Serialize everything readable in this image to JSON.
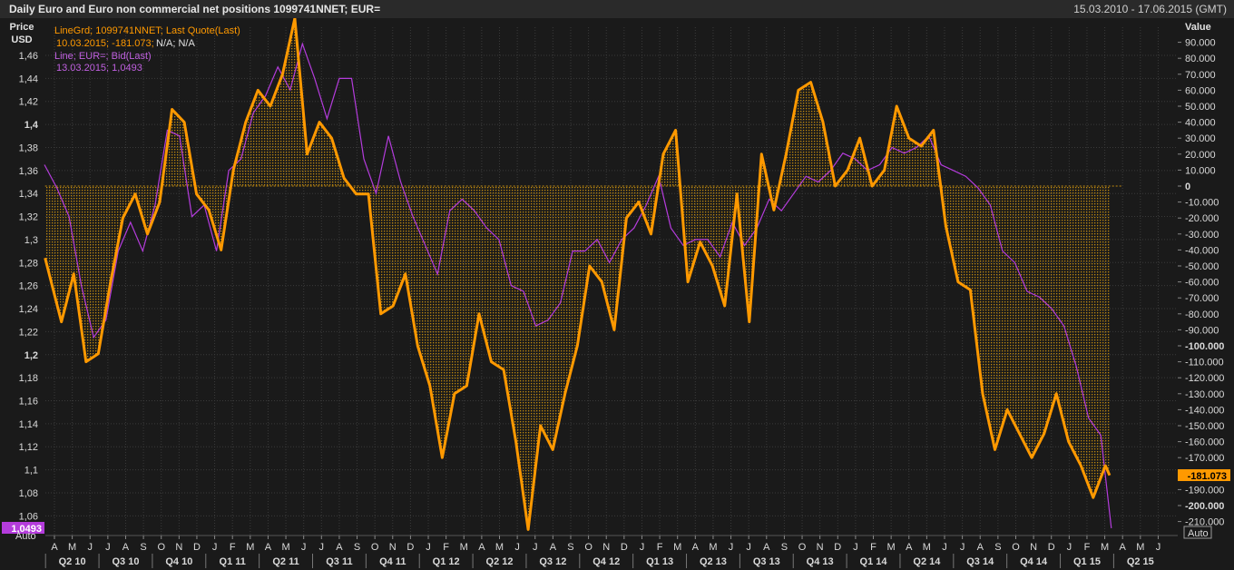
{
  "header": {
    "title": "Daily Euro and Euro non commercial net positions 1099741NNET; EUR=",
    "date_range": "15.03.2010 - 17.06.2015 (GMT)"
  },
  "left_axis": {
    "label_line1": "Price",
    "label_line2": "USD",
    "ticks": [
      "1,46",
      "1,44",
      "1,42",
      "1,4",
      "1,38",
      "1,36",
      "1,34",
      "1,32",
      "1,3",
      "1,28",
      "1,26",
      "1,24",
      "1,22",
      "1,2",
      "1,18",
      "1,16",
      "1,14",
      "1,12",
      "1,1",
      "1,08",
      "1,06"
    ],
    "last_value_tag": "1,0493",
    "auto_button": "Auto"
  },
  "right_axis": {
    "label": "Value",
    "ticks": [
      "90.000",
      "80.000",
      "70.000",
      "60.000",
      "50.000",
      "40.000",
      "30.000",
      "20.000",
      "10.000",
      "0",
      "-10.000",
      "-20.000",
      "-30.000",
      "-40.000",
      "-50.000",
      "-60.000",
      "-70.000",
      "-80.000",
      "-90.000",
      "-100.000",
      "-110.000",
      "-120.000",
      "-130.000",
      "-140.000",
      "-150.000",
      "-160.000",
      "-170.000",
      "-180.000",
      "-190.000",
      "-200.000",
      "-210.000"
    ],
    "last_value_tag": "-181.073",
    "auto_button": "Auto"
  },
  "legend": {
    "series1_name": "LineGrd; 1099741NNET; Last Quote(Last)",
    "series1_detail": "10.03.2015; -181.073;",
    "series1_na": "N/A; N/A",
    "series2_name": "Line; EUR=; Bid(Last)",
    "series2_detail": "13.03.2015; 1,0493"
  },
  "colors": {
    "background": "#1a1a1a",
    "grid": "#3a3a3a",
    "positions": "#ff9900",
    "positions_fill": "#c08a10",
    "eurusd": "#b43cdc",
    "tag_positions": "#ff9900",
    "tag_eurusd": "#b43cdc"
  },
  "x_axis": {
    "months": [
      "A",
      "M",
      "J",
      "J",
      "A",
      "S",
      "O",
      "N",
      "D",
      "J",
      "F",
      "M",
      "A",
      "M",
      "J",
      "J",
      "A",
      "S",
      "O",
      "N",
      "D",
      "J",
      "F",
      "M",
      "A",
      "M",
      "J",
      "J",
      "A",
      "S",
      "O",
      "N",
      "D",
      "J",
      "F",
      "M",
      "A",
      "M",
      "J",
      "J",
      "A",
      "S",
      "O",
      "N",
      "D",
      "J",
      "F",
      "M",
      "A",
      "M",
      "J",
      "J",
      "A",
      "S",
      "O",
      "N",
      "D",
      "J",
      "F",
      "M",
      "A",
      "M",
      "J"
    ],
    "quarters": [
      "Q2 10",
      "Q3 10",
      "Q4 10",
      "Q1 11",
      "Q2 11",
      "Q3 11",
      "Q4 11",
      "Q1 12",
      "Q2 12",
      "Q3 12",
      "Q4 12",
      "Q1 13",
      "Q2 13",
      "Q3 13",
      "Q4 13",
      "Q1 14",
      "Q2 14",
      "Q3 14",
      "Q4 14",
      "Q1 15",
      "Q2 15"
    ]
  },
  "chart_data": {
    "type": "line",
    "title": "Daily Euro and Euro non commercial net positions 1099741NNET; EUR=",
    "x_range": [
      "2010-03-15",
      "2015-06-17"
    ],
    "series": [
      {
        "name": "LineGrd; 1099741NNET; Last Quote(Last)",
        "axis": "right",
        "style": "line-with-fill-to-zero",
        "x": [
          "2010-03-16",
          "2010-04-13",
          "2010-05-04",
          "2010-05-25",
          "2010-06-15",
          "2010-07-06",
          "2010-07-27",
          "2010-08-17",
          "2010-09-07",
          "2010-09-28",
          "2010-10-19",
          "2010-11-09",
          "2010-11-30",
          "2010-12-21",
          "2011-01-11",
          "2011-02-01",
          "2011-02-22",
          "2011-03-15",
          "2011-04-05",
          "2011-04-26",
          "2011-05-17",
          "2011-06-07",
          "2011-06-28",
          "2011-07-19",
          "2011-08-09",
          "2011-08-30",
          "2011-09-20",
          "2011-10-11",
          "2011-11-01",
          "2011-11-22",
          "2011-12-13",
          "2012-01-03",
          "2012-01-24",
          "2012-02-14",
          "2012-03-06",
          "2012-03-27",
          "2012-04-17",
          "2012-05-08",
          "2012-05-29",
          "2012-06-19",
          "2012-07-10",
          "2012-07-31",
          "2012-08-21",
          "2012-09-11",
          "2012-10-02",
          "2012-10-23",
          "2012-11-13",
          "2012-12-04",
          "2012-12-25",
          "2013-01-15",
          "2013-02-05",
          "2013-02-26",
          "2013-03-19",
          "2013-04-09",
          "2013-04-30",
          "2013-05-21",
          "2013-06-11",
          "2013-07-02",
          "2013-07-23",
          "2013-08-13",
          "2013-09-03",
          "2013-09-24",
          "2013-10-15",
          "2013-11-05",
          "2013-11-26",
          "2013-12-17",
          "2014-01-07",
          "2014-01-28",
          "2014-02-18",
          "2014-03-11",
          "2014-04-01",
          "2014-04-22",
          "2014-05-13",
          "2014-06-03",
          "2014-06-24",
          "2014-07-15",
          "2014-08-05",
          "2014-08-26",
          "2014-09-16",
          "2014-10-07",
          "2014-10-28",
          "2014-11-18",
          "2014-12-09",
          "2014-12-30",
          "2015-01-20",
          "2015-02-10",
          "2015-03-03",
          "2015-03-10"
        ],
        "values": [
          -45000,
          -85000,
          -55000,
          -110000,
          -105000,
          -60000,
          -20000,
          -5000,
          -30000,
          -10000,
          48000,
          40000,
          -5000,
          -15000,
          -40000,
          10000,
          40000,
          60000,
          50000,
          70000,
          105000,
          20000,
          40000,
          30000,
          5000,
          -5000,
          -5000,
          -80000,
          -75000,
          -55000,
          -100000,
          -125000,
          -170000,
          -130000,
          -125000,
          -80000,
          -110000,
          -115000,
          -160000,
          -215000,
          -150000,
          -165000,
          -130000,
          -100000,
          -50000,
          -60000,
          -90000,
          -20000,
          -10000,
          -30000,
          20000,
          35000,
          -60000,
          -35000,
          -50000,
          -75000,
          -5000,
          -85000,
          20000,
          -15000,
          20000,
          60000,
          65000,
          40000,
          0,
          10000,
          30000,
          0,
          10000,
          50000,
          30000,
          25000,
          35000,
          -25000,
          -60000,
          -65000,
          -130000,
          -165000,
          -140000,
          -155000,
          -170000,
          -155000,
          -130000,
          -160000,
          -175000,
          -195000,
          -175000,
          -181073
        ]
      },
      {
        "name": "Line; EUR=; Bid(Last)",
        "axis": "left",
        "style": "line",
        "x": [
          "2010-03-15",
          "2010-04-05",
          "2010-04-26",
          "2010-05-17",
          "2010-06-07",
          "2010-06-28",
          "2010-07-19",
          "2010-08-09",
          "2010-08-30",
          "2010-09-20",
          "2010-10-11",
          "2010-11-01",
          "2010-11-22",
          "2010-12-13",
          "2011-01-03",
          "2011-01-24",
          "2011-02-14",
          "2011-03-07",
          "2011-03-28",
          "2011-04-18",
          "2011-05-09",
          "2011-05-30",
          "2011-06-20",
          "2011-07-11",
          "2011-08-01",
          "2011-08-22",
          "2011-09-12",
          "2011-10-03",
          "2011-10-24",
          "2011-11-14",
          "2011-12-05",
          "2011-12-26",
          "2012-01-16",
          "2012-02-06",
          "2012-02-27",
          "2012-03-19",
          "2012-04-09",
          "2012-04-30",
          "2012-05-21",
          "2012-06-11",
          "2012-07-02",
          "2012-07-23",
          "2012-08-13",
          "2012-09-03",
          "2012-09-24",
          "2012-10-15",
          "2012-11-05",
          "2012-11-26",
          "2012-12-17",
          "2013-01-07",
          "2013-01-28",
          "2013-02-18",
          "2013-03-11",
          "2013-04-01",
          "2013-04-22",
          "2013-05-13",
          "2013-06-03",
          "2013-06-24",
          "2013-07-15",
          "2013-08-05",
          "2013-08-26",
          "2013-09-16",
          "2013-10-07",
          "2013-10-28",
          "2013-11-18",
          "2013-12-09",
          "2013-12-30",
          "2014-01-20",
          "2014-02-10",
          "2014-03-03",
          "2014-03-24",
          "2014-04-14",
          "2014-05-05",
          "2014-05-26",
          "2014-06-16",
          "2014-07-07",
          "2014-07-28",
          "2014-08-18",
          "2014-09-08",
          "2014-09-29",
          "2014-10-20",
          "2014-11-10",
          "2014-12-01",
          "2014-12-22",
          "2015-01-12",
          "2015-02-02",
          "2015-02-23",
          "2015-03-13"
        ],
        "values": [
          1.365,
          1.345,
          1.32,
          1.26,
          1.215,
          1.23,
          1.29,
          1.315,
          1.29,
          1.33,
          1.395,
          1.39,
          1.32,
          1.33,
          1.29,
          1.36,
          1.37,
          1.41,
          1.425,
          1.45,
          1.43,
          1.47,
          1.44,
          1.405,
          1.44,
          1.44,
          1.37,
          1.34,
          1.39,
          1.35,
          1.32,
          1.295,
          1.27,
          1.325,
          1.335,
          1.325,
          1.31,
          1.3,
          1.26,
          1.255,
          1.225,
          1.23,
          1.245,
          1.29,
          1.29,
          1.3,
          1.28,
          1.3,
          1.31,
          1.33,
          1.355,
          1.31,
          1.295,
          1.3,
          1.3,
          1.285,
          1.315,
          1.295,
          1.31,
          1.335,
          1.325,
          1.34,
          1.355,
          1.35,
          1.36,
          1.375,
          1.37,
          1.36,
          1.365,
          1.38,
          1.375,
          1.38,
          1.39,
          1.365,
          1.36,
          1.355,
          1.345,
          1.33,
          1.29,
          1.28,
          1.255,
          1.25,
          1.24,
          1.225,
          1.19,
          1.145,
          1.13,
          1.0493
        ]
      }
    ],
    "y_left": {
      "label": "Price USD",
      "range": [
        1.048,
        1.478
      ]
    },
    "y_right": {
      "label": "Value",
      "range": [
        -215000,
        100000
      ]
    },
    "grid": true,
    "legend_placement": "top-left"
  }
}
